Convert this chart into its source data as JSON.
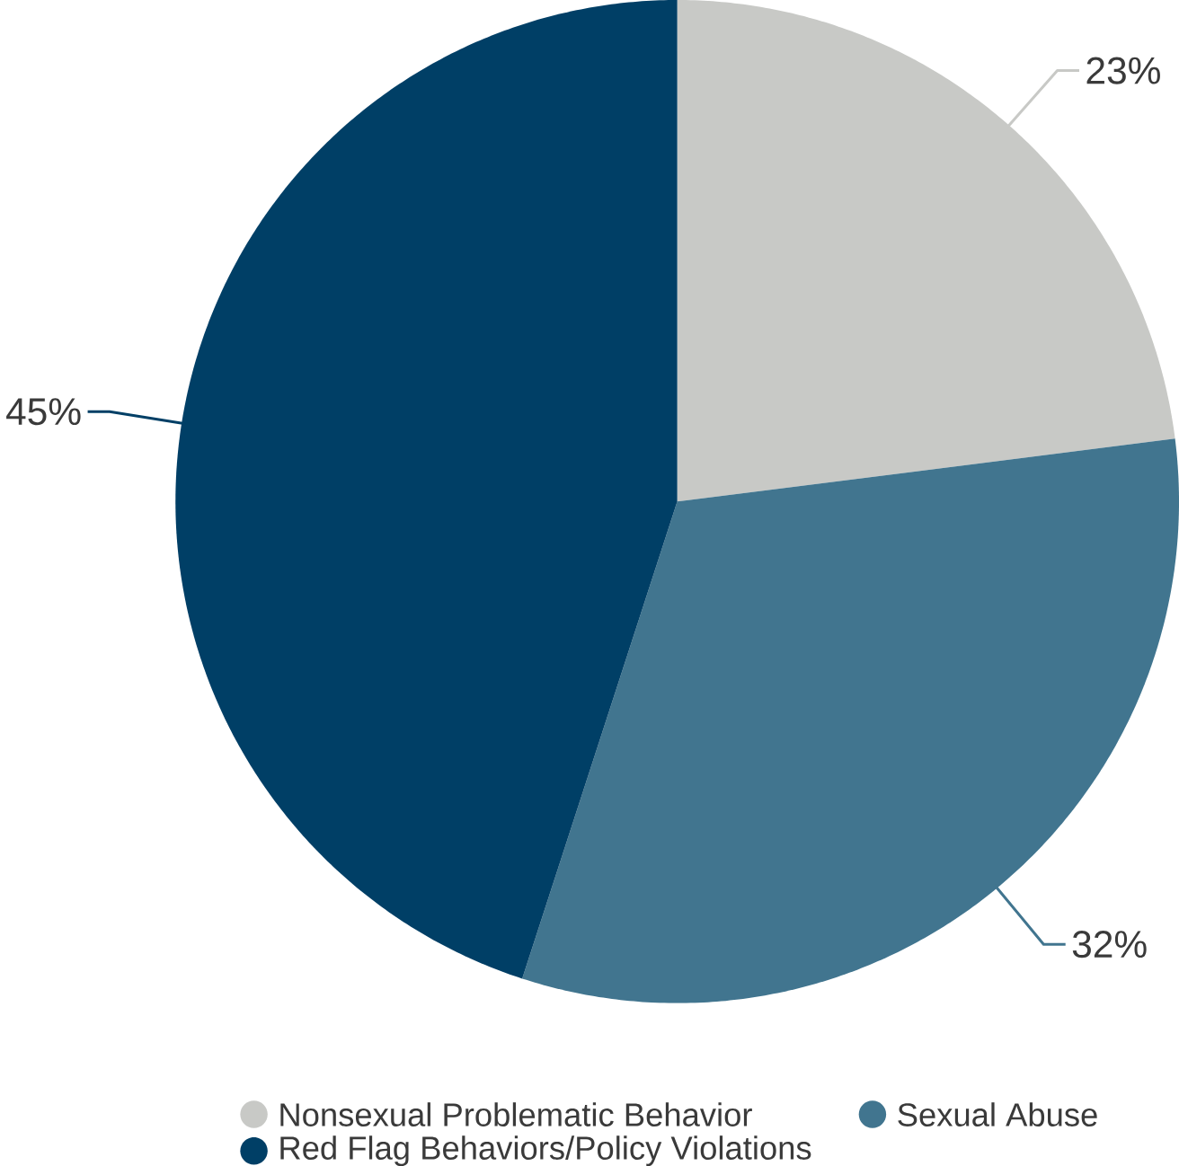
{
  "chart_data": {
    "type": "pie",
    "categories": [
      "Nonsexual Problematic Behavior",
      "Sexual Abuse",
      "Red Flag Behaviors/Policy Violations"
    ],
    "values": [
      23,
      32,
      45
    ],
    "colors": [
      "#c8c9c6",
      "#41758f",
      "#003f66"
    ],
    "value_labels": [
      "23%",
      "32%",
      "45%"
    ],
    "legend": "bottom"
  }
}
